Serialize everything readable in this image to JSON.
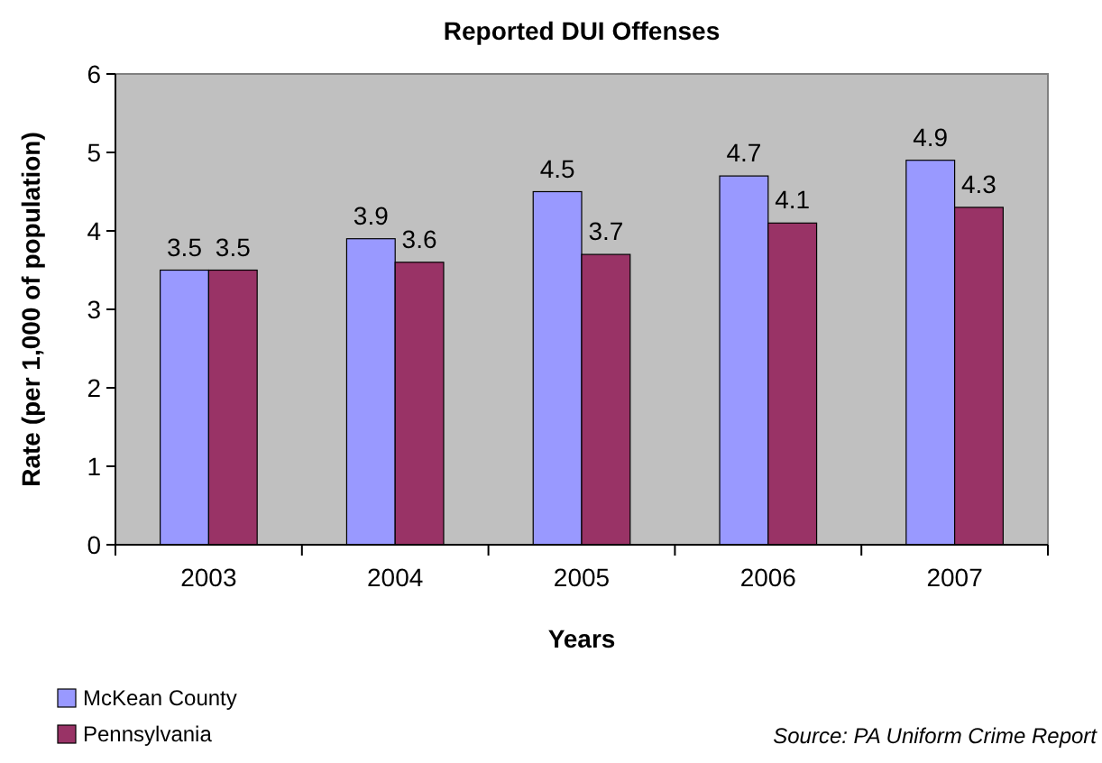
{
  "chart_data": {
    "type": "bar",
    "title": "Reported DUI Offenses",
    "xlabel": "Years",
    "ylabel": "Rate (per 1,000 of population)",
    "categories": [
      "2003",
      "2004",
      "2005",
      "2006",
      "2007"
    ],
    "series": [
      {
        "name": "McKean County",
        "color": "#9999ff",
        "values": [
          3.5,
          3.9,
          4.5,
          4.7,
          4.9
        ]
      },
      {
        "name": "Pennsylvania",
        "color": "#993366",
        "values": [
          3.5,
          3.6,
          3.7,
          4.1,
          4.3
        ]
      }
    ],
    "ylim": [
      0,
      6
    ],
    "yticks": [
      0,
      1,
      2,
      3,
      4,
      5,
      6
    ],
    "grid": false,
    "legend": "bottom left",
    "data_labels": true,
    "annotations": [
      "Source: PA Uniform Crime Report"
    ]
  }
}
